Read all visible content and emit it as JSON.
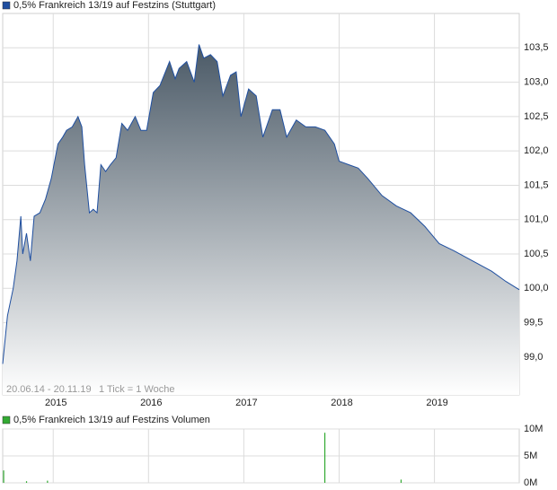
{
  "chart_data": [
    {
      "type": "area",
      "x": [
        2014.47,
        2014.52,
        2014.58,
        2014.62,
        2014.66,
        2014.68,
        2014.72,
        2014.76,
        2014.8,
        2014.86,
        2014.92,
        2014.98,
        2015.05,
        2015.1,
        2015.14,
        2015.2,
        2015.26,
        2015.3,
        2015.33,
        2015.38,
        2015.42,
        2015.46,
        2015.5,
        2015.55,
        2015.6,
        2015.66,
        2015.72,
        2015.78,
        2015.86,
        2015.92,
        2015.98,
        2016.05,
        2016.12,
        2016.22,
        2016.28,
        2016.32,
        2016.4,
        2016.48,
        2016.53,
        2016.58,
        2016.65,
        2016.72,
        2016.78,
        2016.86,
        2016.92,
        2016.97,
        2017.05,
        2017.13,
        2017.2,
        2017.3,
        2017.38,
        2017.45,
        2017.55,
        2017.65,
        2017.75,
        2017.85,
        2017.95,
        2018.0,
        2018.1,
        2018.2,
        2018.3,
        2018.45,
        2018.6,
        2018.75,
        2018.9,
        2019.05,
        2019.2,
        2019.4,
        2019.6,
        2019.75,
        2019.89
      ],
      "series": [
        {
          "name": "0,5% Frankreich 13/19 auf Festzins (Stuttgart)",
          "color": "#1f4fa0",
          "values": [
            98.9,
            99.6,
            100.0,
            100.4,
            101.05,
            100.5,
            100.8,
            100.4,
            101.05,
            101.1,
            101.3,
            101.6,
            102.1,
            102.2,
            102.3,
            102.35,
            102.5,
            102.35,
            101.8,
            101.1,
            101.15,
            101.1,
            101.8,
            101.7,
            101.8,
            101.9,
            102.4,
            102.3,
            102.5,
            102.3,
            102.3,
            102.85,
            102.95,
            103.3,
            103.05,
            103.2,
            103.3,
            103.0,
            103.55,
            103.35,
            103.4,
            103.3,
            102.8,
            103.1,
            103.15,
            102.5,
            102.9,
            102.8,
            102.2,
            102.6,
            102.6,
            102.2,
            102.45,
            102.35,
            102.35,
            102.3,
            102.1,
            101.85,
            101.8,
            101.75,
            101.6,
            101.35,
            101.2,
            101.1,
            100.9,
            100.65,
            100.55,
            100.4,
            100.25,
            100.1,
            99.98
          ]
        }
      ],
      "fill_color": "#4a5966",
      "xlim": [
        2014.47,
        2019.89
      ],
      "xticks": [
        2015,
        2016,
        2017,
        2018,
        2019
      ],
      "ylim": [
        98.45,
        104.0
      ],
      "yticks": [
        {
          "value": 99.0,
          "label": "99,0"
        },
        {
          "value": 99.5,
          "label": "99,5"
        },
        {
          "value": 100.0,
          "label": "100,0"
        },
        {
          "value": 100.5,
          "label": "100,5"
        },
        {
          "value": 101.0,
          "label": "101,0"
        },
        {
          "value": 101.5,
          "label": "101,5"
        },
        {
          "value": 102.0,
          "label": "102,0"
        },
        {
          "value": 102.5,
          "label": "102,5"
        },
        {
          "value": 103.0,
          "label": "103,0"
        },
        {
          "value": 103.5,
          "label": "103,5"
        }
      ],
      "annotations": [
        "20.06.14 - 20.11.19",
        "1 Tick = 1 Woche"
      ],
      "grid": true
    },
    {
      "type": "bar",
      "x": [
        2014.48,
        2014.72,
        2014.94,
        2017.85,
        2018.65
      ],
      "series": [
        {
          "name": "0,5% Frankreich 13/19 auf Festzins Volumen",
          "color": "#33aa33",
          "values": [
            2300000,
            300000,
            400000,
            9300000,
            600000
          ]
        }
      ],
      "xlim": [
        2014.47,
        2019.89
      ],
      "xticks": [
        2015,
        2016,
        2017,
        2018,
        2019
      ],
      "ylim": [
        0,
        10000000
      ],
      "yticks": [
        {
          "value": 0,
          "label": "0M"
        },
        {
          "value": 5000000,
          "label": "5M"
        },
        {
          "value": 10000000,
          "label": "10M"
        }
      ],
      "grid": true
    }
  ]
}
